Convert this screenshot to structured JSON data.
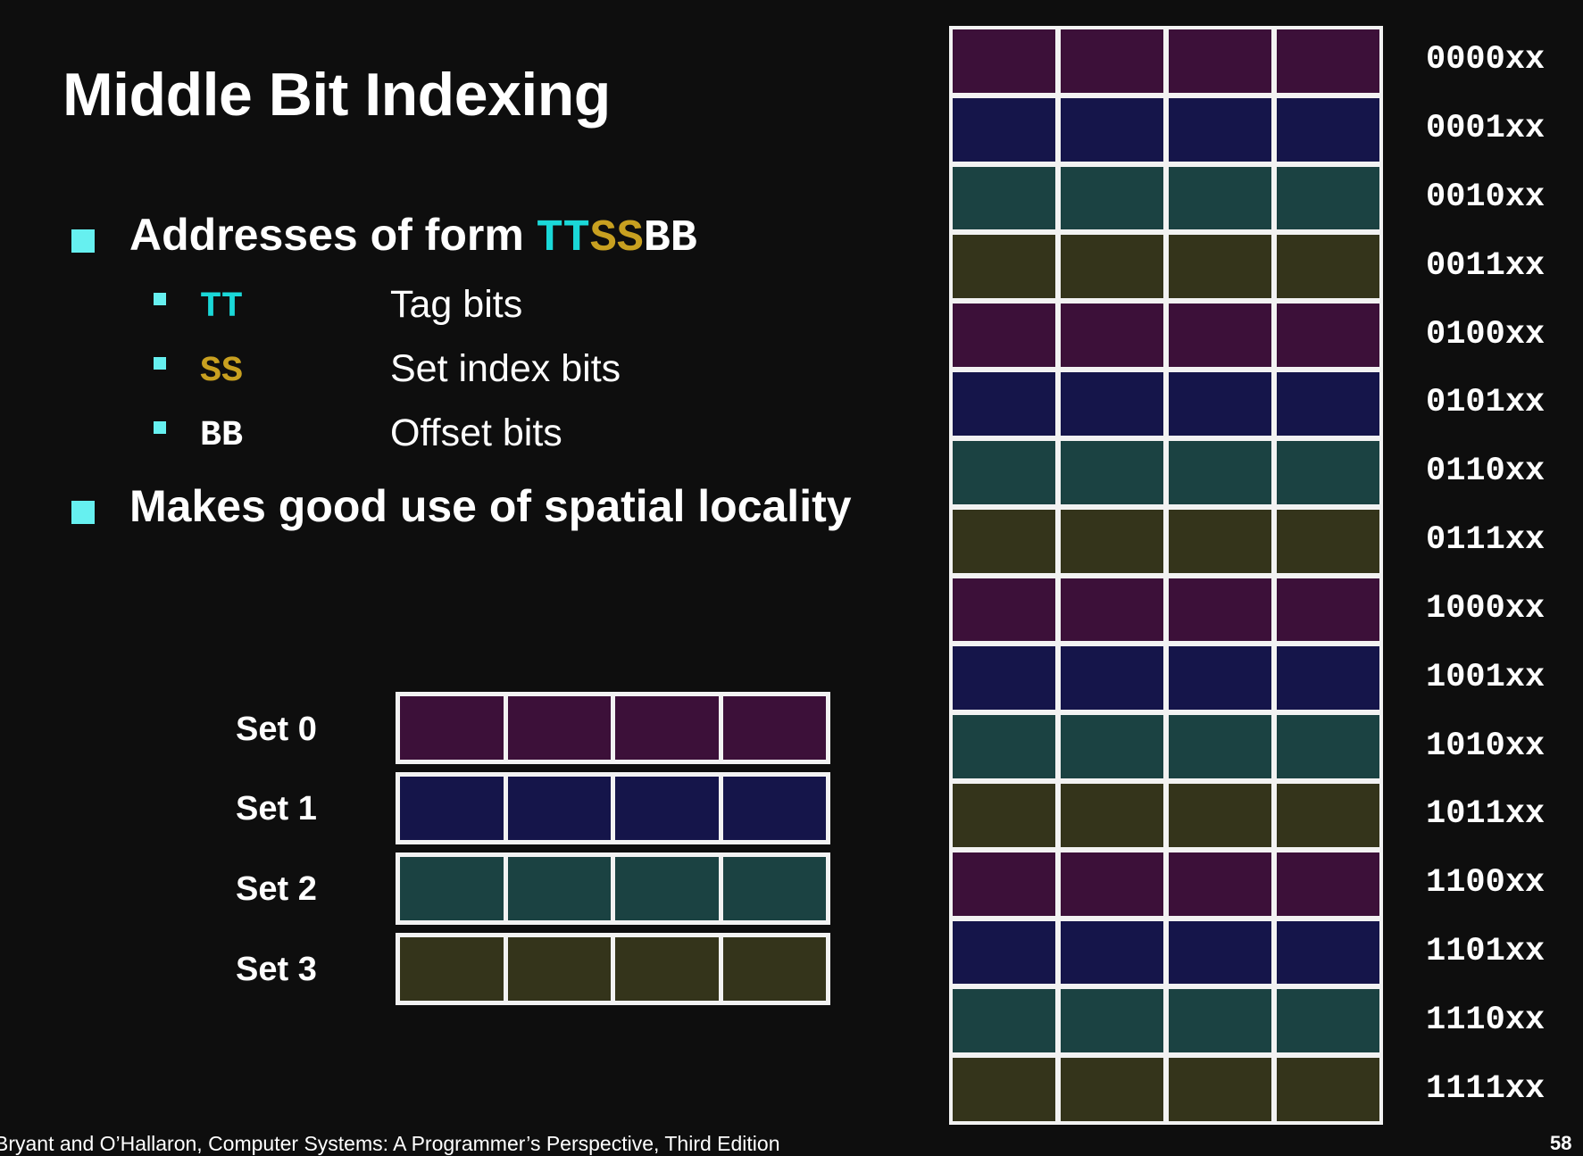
{
  "title": "Middle Bit Indexing",
  "bullets": [
    {
      "prefix": "Addresses of form ",
      "code_parts": [
        {
          "text": "TT",
          "color": "#1ad8d8"
        },
        {
          "text": "SS",
          "color": "#c8a020"
        },
        {
          "text": "BB",
          "color": "#ffffff"
        }
      ]
    },
    {
      "text": "Makes good use of spatial locality"
    }
  ],
  "sub_bullets": [
    {
      "code": "TT",
      "color": "#1ad8d8",
      "desc": "Tag bits"
    },
    {
      "code": "SS",
      "color": "#c8a020",
      "desc": "Set index bits"
    },
    {
      "code": "BB",
      "color": "#ffffff",
      "desc": "Offset bits"
    }
  ],
  "sets": [
    {
      "label": "Set 0",
      "color": "#3c1039"
    },
    {
      "label": "Set 1",
      "color": "#15154a"
    },
    {
      "label": "Set 2",
      "color": "#1b4242"
    },
    {
      "label": "Set 3",
      "color": "#34341b"
    }
  ],
  "memory_rows": [
    {
      "addr": "0000xx",
      "set": 0
    },
    {
      "addr": "0001xx",
      "set": 1
    },
    {
      "addr": "0010xx",
      "set": 2
    },
    {
      "addr": "0011xx",
      "set": 3
    },
    {
      "addr": "0100xx",
      "set": 0
    },
    {
      "addr": "0101xx",
      "set": 1
    },
    {
      "addr": "0110xx",
      "set": 2
    },
    {
      "addr": "0111xx",
      "set": 3
    },
    {
      "addr": "1000xx",
      "set": 0
    },
    {
      "addr": "1001xx",
      "set": 1
    },
    {
      "addr": "1010xx",
      "set": 2
    },
    {
      "addr": "1011xx",
      "set": 3
    },
    {
      "addr": "1100xx",
      "set": 0
    },
    {
      "addr": "1101xx",
      "set": 1
    },
    {
      "addr": "1110xx",
      "set": 2
    },
    {
      "addr": "1111xx",
      "set": 3
    }
  ],
  "blocks_per_line": 4,
  "footer": "Bryant and O’Hallaron, Computer Systems: A Programmer’s Perspective, Third Edition",
  "page_number": "58",
  "colors": {
    "background": "#0e0e0e",
    "bullet": "#66f0f0",
    "border": "#f2f2f2"
  }
}
